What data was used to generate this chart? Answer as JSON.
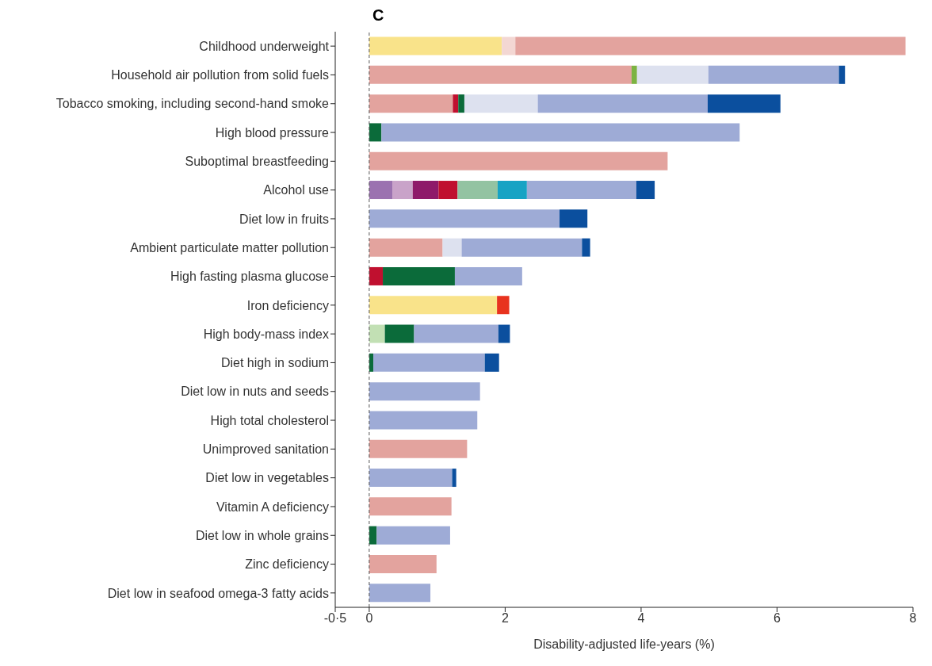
{
  "chart_data": {
    "type": "bar",
    "orientation": "horizontal",
    "stacked": true,
    "title": "C",
    "xlabel": "Disability-adjusted life-years (%)",
    "categories": [
      "Childhood underweight",
      "Household air pollution from solid fuels",
      "Tobacco smoking, including second-hand smoke",
      "High blood pressure",
      "Suboptimal breastfeeding",
      "Alcohol use",
      "Diet low in fruits",
      "Ambient particulate matter pollution",
      "High fasting plasma glucose",
      "Iron deficiency",
      "High body-mass index",
      "Diet high in sodium",
      "Diet low in nuts and seeds",
      "High total cholesterol",
      "Unimproved sanitation",
      "Diet low in vegetables",
      "Vitamin A deficiency",
      "Diet low in whole grains",
      "Zinc deficiency",
      "Diet low in seafood omega-3 fatty acids"
    ],
    "series": [
      {
        "color": "#f9e38a",
        "values": [
          1.95,
          null,
          null,
          null,
          null,
          null,
          null,
          null,
          null,
          1.88,
          null,
          null,
          null,
          null,
          null,
          null,
          null,
          null,
          null,
          null
        ]
      },
      {
        "color": "#f3d7d3",
        "values": [
          0.2,
          null,
          null,
          null,
          null,
          null,
          null,
          null,
          null,
          null,
          null,
          null,
          null,
          null,
          null,
          null,
          null,
          null,
          null,
          null
        ]
      },
      {
        "color": "#e3a39e",
        "values": [
          5.74,
          3.86,
          1.23,
          null,
          4.39,
          null,
          null,
          1.08,
          null,
          null,
          null,
          null,
          null,
          null,
          1.44,
          null,
          1.21,
          null,
          0.99,
          null
        ]
      },
      {
        "color": "#7cb342",
        "values": [
          null,
          0.08,
          null,
          null,
          null,
          null,
          null,
          null,
          null,
          null,
          null,
          null,
          null,
          null,
          null,
          null,
          null,
          null,
          null,
          null
        ]
      },
      {
        "color": "#9b72b0",
        "values": [
          null,
          null,
          null,
          null,
          null,
          0.34,
          null,
          null,
          null,
          null,
          null,
          null,
          null,
          null,
          null,
          null,
          null,
          null,
          null,
          null
        ]
      },
      {
        "color": "#c9a3c9",
        "values": [
          null,
          null,
          null,
          null,
          null,
          0.3,
          null,
          null,
          null,
          null,
          null,
          null,
          null,
          null,
          null,
          null,
          null,
          null,
          null,
          null
        ]
      },
      {
        "color": "#8e1a6a",
        "values": [
          null,
          null,
          null,
          null,
          null,
          0.38,
          null,
          null,
          null,
          null,
          null,
          null,
          null,
          null,
          null,
          null,
          null,
          null,
          null,
          null
        ]
      },
      {
        "color": "#c0102f",
        "values": [
          null,
          null,
          0.08,
          null,
          null,
          0.28,
          null,
          null,
          0.2,
          null,
          null,
          null,
          null,
          null,
          null,
          null,
          null,
          null,
          null,
          null
        ]
      },
      {
        "color": "#93c3a2",
        "values": [
          null,
          null,
          null,
          null,
          null,
          0.59,
          null,
          null,
          null,
          null,
          null,
          null,
          null,
          null,
          null,
          null,
          null,
          null,
          null,
          null
        ]
      },
      {
        "color": "#c2e0b4",
        "values": [
          null,
          null,
          null,
          null,
          null,
          null,
          null,
          null,
          null,
          null,
          0.23,
          null,
          null,
          null,
          null,
          null,
          null,
          null,
          null,
          null
        ]
      },
      {
        "color": "#0b6b3a",
        "values": [
          null,
          null,
          0.09,
          0.18,
          null,
          null,
          null,
          null,
          1.06,
          null,
          0.43,
          0.06,
          null,
          null,
          null,
          null,
          null,
          0.11,
          null,
          null
        ]
      },
      {
        "color": "#17a3c4",
        "values": [
          null,
          null,
          null,
          null,
          null,
          0.43,
          null,
          null,
          null,
          null,
          null,
          null,
          null,
          null,
          null,
          null,
          null,
          null,
          null,
          null
        ]
      },
      {
        "color": "#dde1ef",
        "values": [
          null,
          1.05,
          1.08,
          null,
          null,
          null,
          null,
          0.28,
          null,
          null,
          null,
          null,
          null,
          null,
          null,
          null,
          null,
          null,
          null,
          null
        ]
      },
      {
        "color": "#9eabd6",
        "values": [
          null,
          1.92,
          2.5,
          5.27,
          null,
          1.61,
          2.8,
          1.77,
          0.99,
          null,
          1.24,
          1.64,
          1.63,
          1.59,
          null,
          1.22,
          null,
          1.08,
          null,
          0.9
        ]
      },
      {
        "color": "#0b4f9e",
        "values": [
          null,
          0.09,
          1.07,
          null,
          null,
          0.27,
          0.41,
          0.12,
          null,
          null,
          0.17,
          0.21,
          null,
          null,
          null,
          0.06,
          null,
          null,
          null,
          null
        ]
      },
      {
        "color": "#e8331e",
        "values": [
          null,
          null,
          null,
          null,
          null,
          null,
          null,
          null,
          null,
          0.18,
          null,
          null,
          null,
          null,
          null,
          null,
          null,
          null,
          null,
          null
        ]
      }
    ],
    "xlim": [
      -0.5,
      8
    ],
    "xticks": [
      {
        "value": -0.5,
        "label": "-0·5"
      },
      0,
      2,
      4,
      6,
      8
    ],
    "ref_lines": [
      {
        "axis": "x",
        "value": 0,
        "line_style": "dashed",
        "color": "#555555"
      }
    ],
    "grid": false,
    "legend": false
  }
}
